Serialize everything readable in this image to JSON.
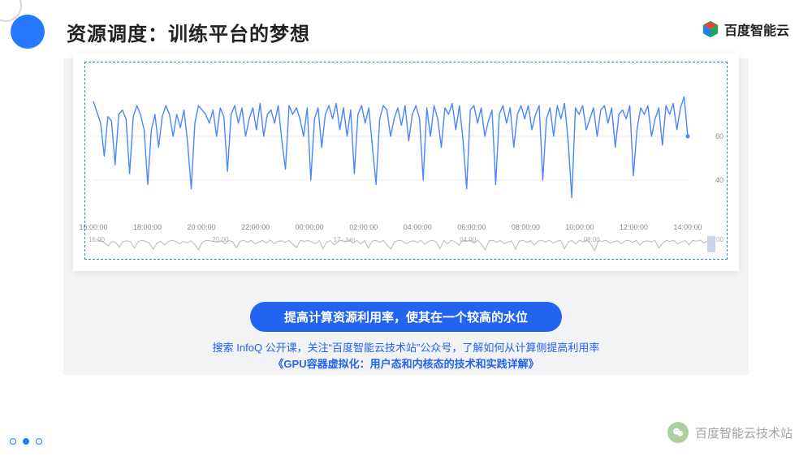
{
  "title": "资源调度：训练平台的梦想",
  "brand": "百度智能云",
  "watermark": "百度智能云技术站",
  "pill": "提高计算资源利用率，使其在一个较高的水位",
  "line1": "搜索 InfoQ 公开课，关注“百度智能云技术站”公众号，了解如何从计算侧提高利用率",
  "line2": "《GPU容器虚拟化：用户态和内核态的技术和实践详解》",
  "pager": {
    "count": 3,
    "active": 1
  },
  "chart": {
    "type": "line",
    "line_color": "#4a86ff",
    "line_width": 1.4,
    "background": "#ffffff",
    "border_dash_color": "#2878ff",
    "grid_color": "#eeeeee",
    "ylim": [
      30,
      90
    ],
    "y_ticks": [
      40,
      60
    ],
    "y_tick_color": "#888888",
    "x_ticks": [
      "16:00:00",
      "18:00:00",
      "20:00:00",
      "22:00:00",
      "00:00:00",
      "02:00:00",
      "04:00:00",
      "06:00:00",
      "08:00:00",
      "10:00:00",
      "12:00:00",
      "14:00:00"
    ],
    "x_tick_color": "#888888",
    "scrub_ticks": [
      "16:00",
      "20:00",
      "17. Jun",
      "04:00",
      "08:00",
      "12:00"
    ],
    "scrub_line_color": "#b5b9c0",
    "scrub_handle_color": "#c9d4ea",
    "values": [
      76,
      71,
      66,
      51,
      69,
      67,
      47,
      70,
      72,
      68,
      43,
      69,
      74,
      70,
      63,
      38,
      63,
      70,
      55,
      69,
      74,
      70,
      60,
      70,
      64,
      72,
      57,
      36,
      66,
      74,
      72,
      70,
      66,
      72,
      60,
      73,
      69,
      44,
      70,
      74,
      66,
      73,
      60,
      68,
      73,
      63,
      75,
      60,
      70,
      72,
      66,
      74,
      58,
      45,
      74,
      70,
      73,
      68,
      60,
      73,
      40,
      68,
      73,
      55,
      70,
      74,
      68,
      75,
      63,
      73,
      60,
      72,
      43,
      70,
      74,
      66,
      73,
      55,
      38,
      68,
      74,
      72,
      60,
      68,
      73,
      65,
      74,
      58,
      70,
      74,
      68,
      40,
      73,
      60,
      74,
      68,
      55,
      73,
      70,
      75,
      63,
      74,
      58,
      36,
      72,
      74,
      66,
      73,
      60,
      67,
      72,
      38,
      70,
      74,
      66,
      73,
      55,
      70,
      74,
      68,
      74,
      63,
      70,
      74,
      40,
      68,
      73,
      60,
      74,
      68,
      75,
      58,
      32,
      73,
      70,
      74,
      63,
      68,
      73,
      60,
      72,
      74,
      66,
      73,
      55,
      70,
      72,
      68,
      74,
      42,
      63,
      73,
      70,
      74,
      60,
      68,
      73,
      56,
      74,
      70,
      75,
      63,
      73,
      78,
      60
    ]
  }
}
